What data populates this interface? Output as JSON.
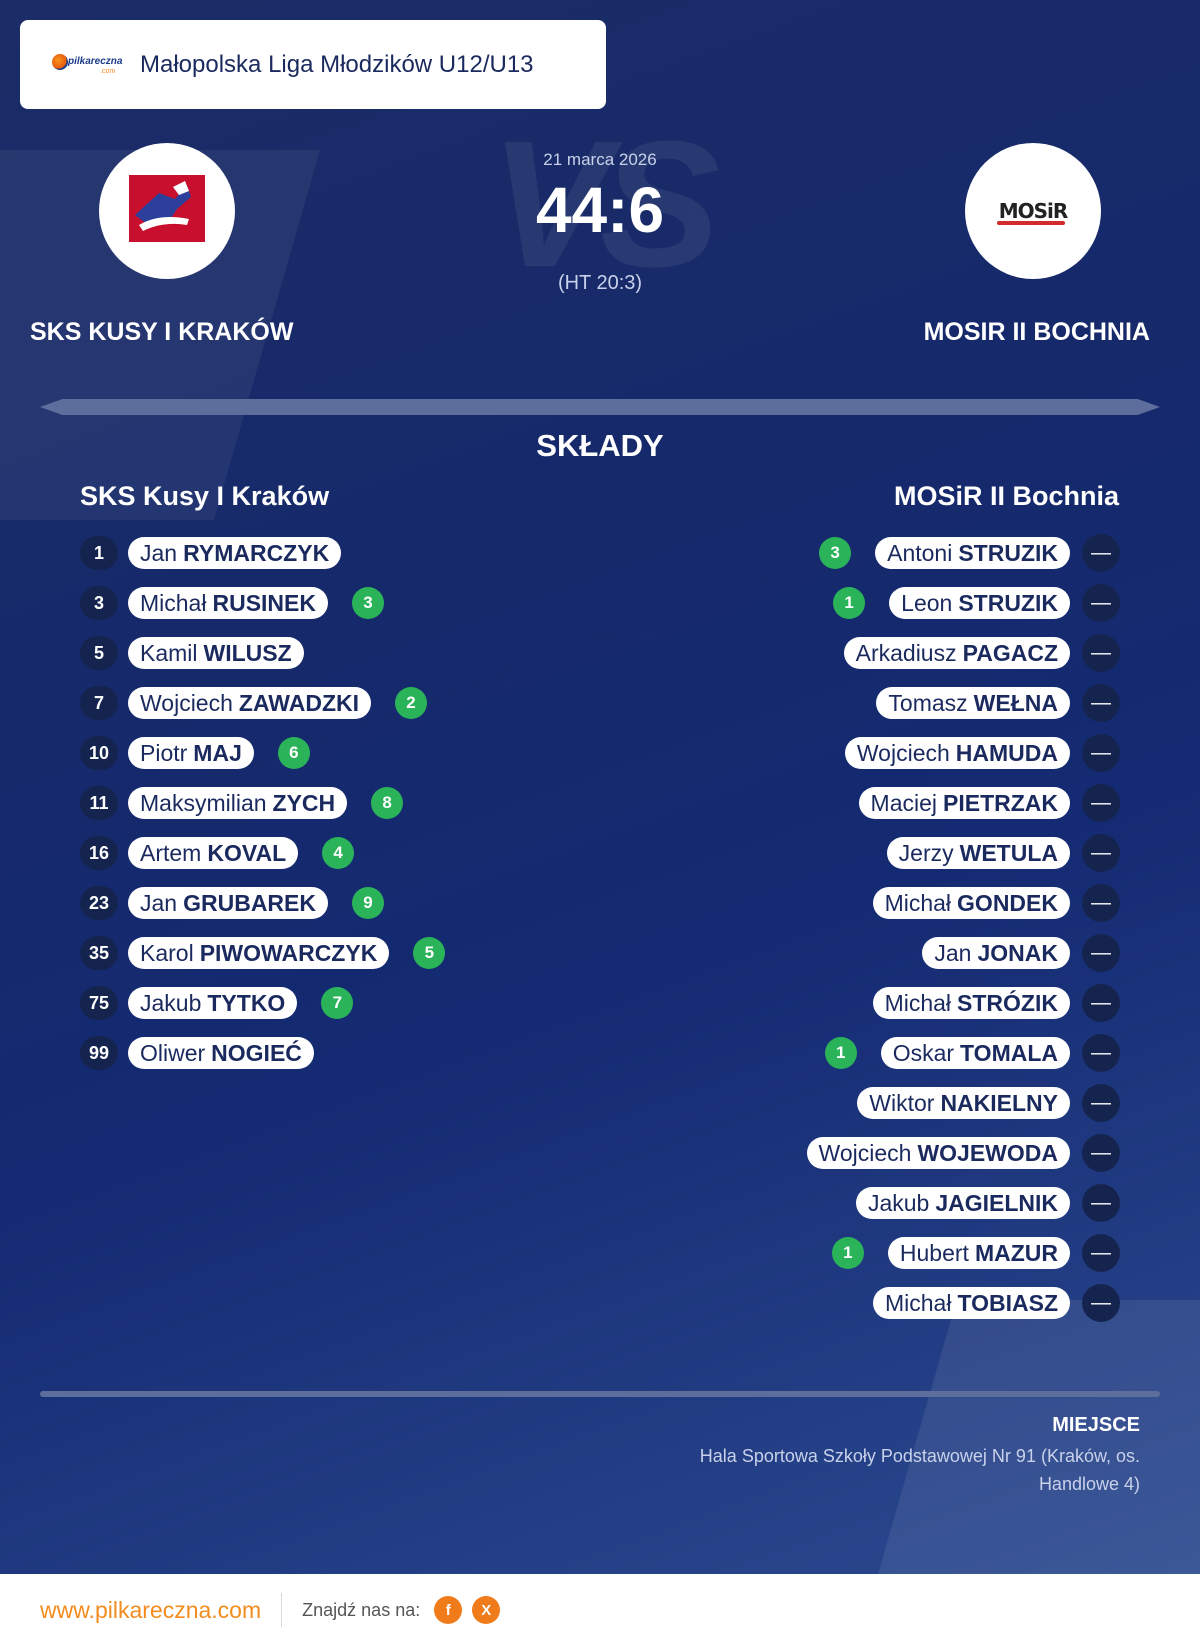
{
  "league": {
    "name": "Małopolska Liga Młodzików U12/U13",
    "logo_text": "pilkareczna",
    "logo_domain": ".com"
  },
  "match": {
    "vs_text": "VS",
    "date": "21 marca 2026",
    "score": "44:6",
    "halftime": "(HT 20:3)",
    "home_team": "SKS KUSY I KRAKÓW",
    "away_team": "MOSIR II BOCHNIA",
    "away_crest_text": "MOSiR"
  },
  "lineups": {
    "title": "SKŁADY",
    "home": {
      "name": "SKS Kusy I Kraków",
      "players": [
        {
          "number": "1",
          "first": "Jan",
          "last": "RYMARCZYK",
          "goals": ""
        },
        {
          "number": "3",
          "first": "Michał",
          "last": "RUSINEK",
          "goals": "3"
        },
        {
          "number": "5",
          "first": "Kamil",
          "last": "WILUSZ",
          "goals": ""
        },
        {
          "number": "7",
          "first": "Wojciech",
          "last": "ZAWADZKI",
          "goals": "2"
        },
        {
          "number": "10",
          "first": "Piotr",
          "last": "MAJ",
          "goals": "6"
        },
        {
          "number": "11",
          "first": "Maksymilian",
          "last": "ZYCH",
          "goals": "8"
        },
        {
          "number": "16",
          "first": "Artem",
          "last": "KOVAL",
          "goals": "4"
        },
        {
          "number": "23",
          "first": "Jan",
          "last": "GRUBAREK",
          "goals": "9"
        },
        {
          "number": "35",
          "first": "Karol",
          "last": "PIWOWARCZYK",
          "goals": "5"
        },
        {
          "number": "75",
          "first": "Jakub",
          "last": "TYTKO",
          "goals": "7"
        },
        {
          "number": "99",
          "first": "Oliwer",
          "last": "NOGIEĆ",
          "goals": ""
        }
      ]
    },
    "away": {
      "name": "MOSiR II Bochnia",
      "players": [
        {
          "number": "—",
          "first": "Antoni",
          "last": "STRUZIK",
          "goals": "3"
        },
        {
          "number": "—",
          "first": "Leon",
          "last": "STRUZIK",
          "goals": "1"
        },
        {
          "number": "—",
          "first": "Arkadiusz",
          "last": "PAGACZ",
          "goals": ""
        },
        {
          "number": "—",
          "first": "Tomasz",
          "last": "WEŁNA",
          "goals": ""
        },
        {
          "number": "—",
          "first": "Wojciech",
          "last": "HAMUDA",
          "goals": ""
        },
        {
          "number": "—",
          "first": "Maciej",
          "last": "PIETRZAK",
          "goals": ""
        },
        {
          "number": "—",
          "first": "Jerzy",
          "last": "WETULA",
          "goals": ""
        },
        {
          "number": "—",
          "first": "Michał",
          "last": "GONDEK",
          "goals": ""
        },
        {
          "number": "—",
          "first": "Jan",
          "last": "JONAK",
          "goals": ""
        },
        {
          "number": "—",
          "first": "Michał",
          "last": "STRÓZIK",
          "goals": ""
        },
        {
          "number": "—",
          "first": "Oskar",
          "last": "TOMALA",
          "goals": "1"
        },
        {
          "number": "—",
          "first": "Wiktor",
          "last": "NAKIELNY",
          "goals": ""
        },
        {
          "number": "—",
          "first": "Wojciech",
          "last": "WOJEWODA",
          "goals": ""
        },
        {
          "number": "—",
          "first": "Jakub",
          "last": "JAGIELNIK",
          "goals": ""
        },
        {
          "number": "—",
          "first": "Hubert",
          "last": "MAZUR",
          "goals": "1"
        },
        {
          "number": "—",
          "first": "Michał",
          "last": "TOBIASZ",
          "goals": ""
        }
      ]
    }
  },
  "venue": {
    "label": "MIEJSCE",
    "text": "Hala Sportowa Szkoły Podstawowej Nr 91 (Kraków, os. Handlowe 4)"
  },
  "footer": {
    "site": "www.pilkareczna.com",
    "find_us": "Znajdź nas na:",
    "socials": [
      {
        "icon": "facebook-icon",
        "glyph": "f"
      },
      {
        "icon": "x-icon",
        "glyph": "X"
      }
    ]
  },
  "colors": {
    "background": "#16296a",
    "accent": "#f28c1e",
    "goal_badge": "#2bb35a",
    "number_badge": "#15244f"
  }
}
